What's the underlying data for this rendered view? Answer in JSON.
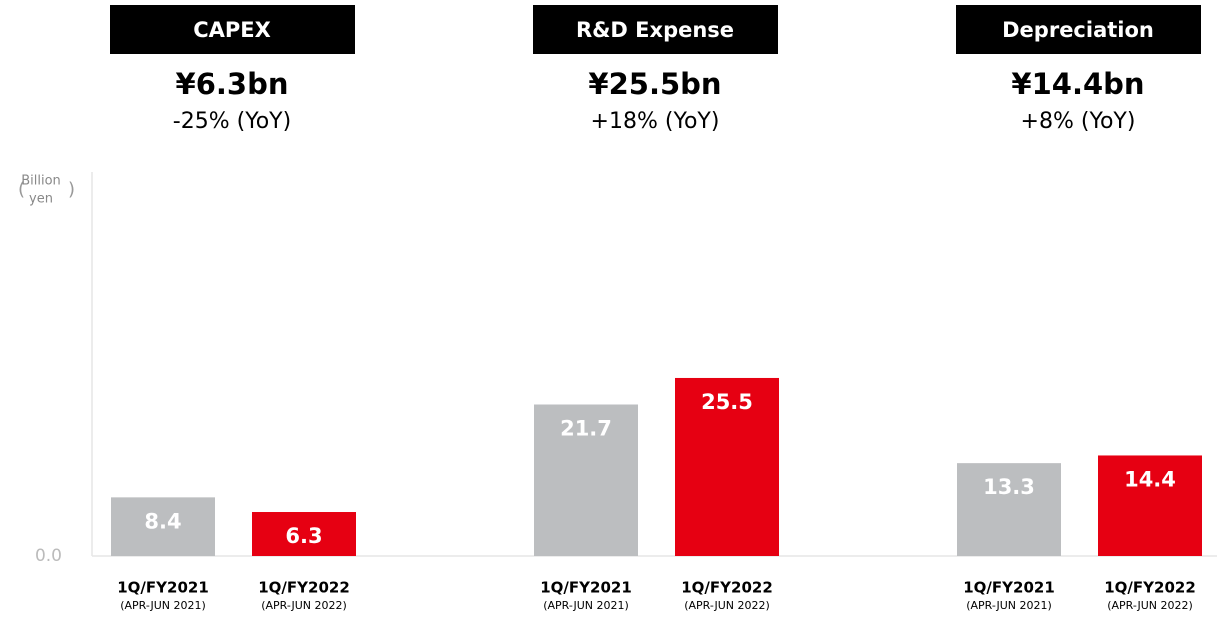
{
  "chart_data": {
    "type": "bar",
    "y_label": [
      "Billion",
      "yen"
    ],
    "ylim": [
      0,
      55
    ],
    "yticks": [
      {
        "value": 0,
        "label": "0.0"
      }
    ],
    "colors": [
      "#bcbec0",
      "#e60012"
    ],
    "categories": [
      {
        "period": "1Q/FY2021",
        "months": "(APR-JUN 2021)"
      },
      {
        "period": "1Q/FY2022",
        "months": "(APR-JUN 2022)"
      }
    ],
    "groups": [
      {
        "title": "CAPEX",
        "headline": "¥6.3bn",
        "change": "-25% (YoY)",
        "values": [
          8.4,
          6.3
        ]
      },
      {
        "title": "R&D Expense",
        "headline": "¥25.5bn",
        "change": "+18% (YoY)",
        "values": [
          21.7,
          25.5
        ]
      },
      {
        "title": "Depreciation",
        "headline": "¥14.4bn",
        "change": "+8% (YoY)",
        "values": [
          13.3,
          14.4
        ]
      }
    ]
  }
}
